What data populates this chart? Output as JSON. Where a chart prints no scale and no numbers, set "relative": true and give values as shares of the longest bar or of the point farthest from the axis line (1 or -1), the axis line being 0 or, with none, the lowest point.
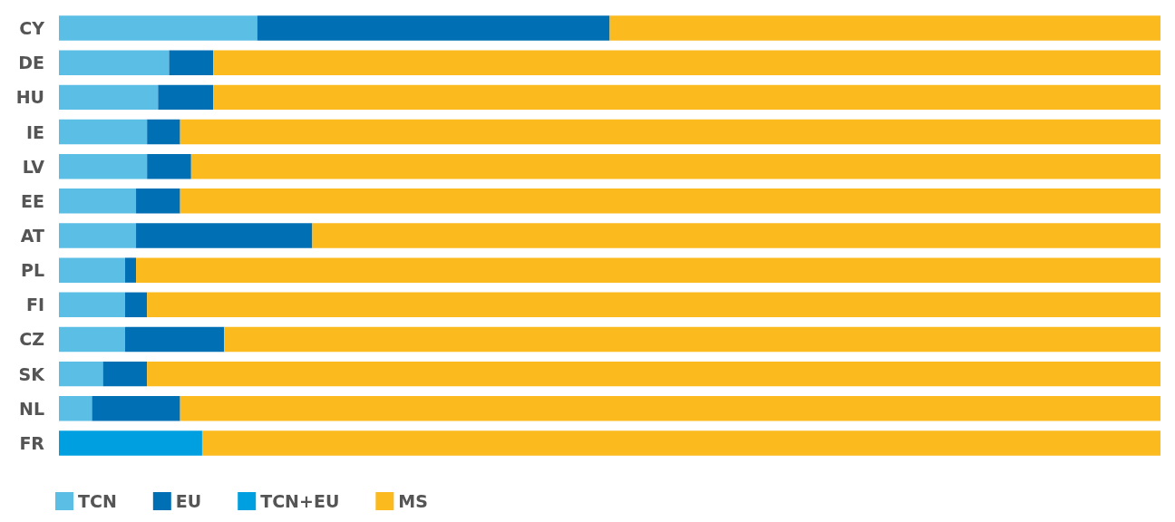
{
  "chart_data": {
    "type": "bar",
    "orientation": "horizontal",
    "stacked": true,
    "relative": true,
    "legend": "bottom left",
    "categories": [
      "CY",
      "DE",
      "HU",
      "IE",
      "LV",
      "EE",
      "AT",
      "PL",
      "FI",
      "CZ",
      "SK",
      "NL",
      "FR"
    ],
    "series": [
      {
        "name": "TCN",
        "color": "#5bbee5",
        "values": [
          0.18,
          0.1,
          0.09,
          0.08,
          0.08,
          0.07,
          0.07,
          0.06,
          0.06,
          0.06,
          0.04,
          0.03,
          null
        ]
      },
      {
        "name": "EU",
        "color": "#006fb4",
        "values": [
          0.32,
          0.04,
          0.05,
          0.03,
          0.04,
          0.04,
          0.16,
          0.01,
          0.02,
          0.09,
          0.04,
          0.08,
          null
        ]
      },
      {
        "name": "TCN+EU",
        "color": "#00a0e0",
        "values": [
          null,
          null,
          null,
          null,
          null,
          null,
          null,
          null,
          null,
          null,
          null,
          null,
          0.13
        ]
      },
      {
        "name": "MS",
        "color": "#fbba1e",
        "values": [
          0.5,
          0.86,
          0.86,
          0.89,
          0.88,
          0.89,
          0.77,
          0.93,
          0.92,
          0.85,
          0.92,
          0.89,
          0.87
        ]
      }
    ]
  }
}
